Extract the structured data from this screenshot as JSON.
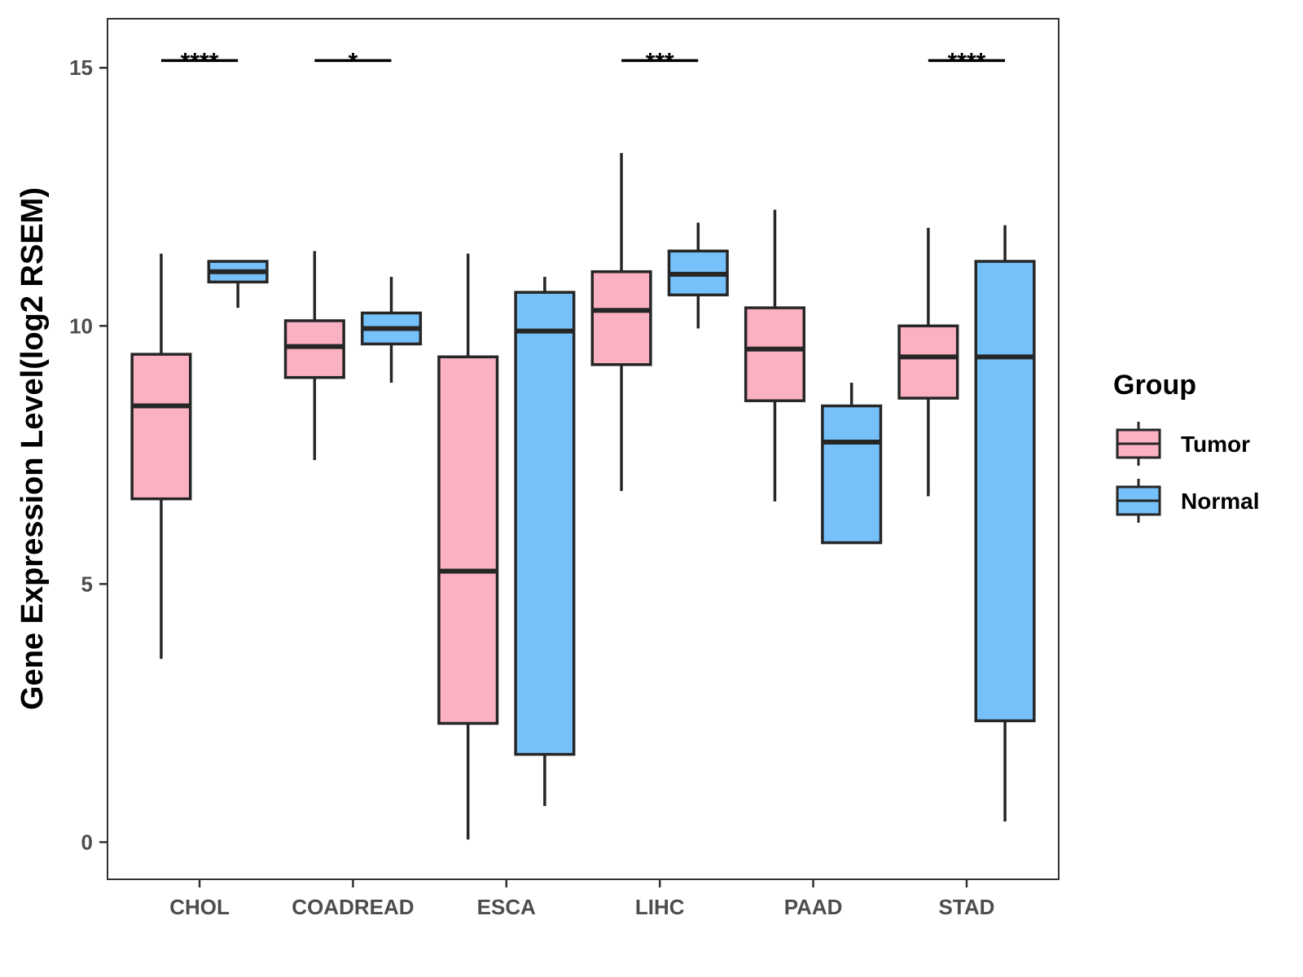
{
  "chart_data": {
    "type": "box",
    "title": "",
    "xlabel": "",
    "ylabel": "Gene Expression Level(log2 RSEM)",
    "ylim": [
      -0.72,
      15.95
    ],
    "yticks": [
      0,
      5,
      10,
      15
    ],
    "grid": false,
    "legend_position": "right",
    "legend_title": "Group",
    "categories": [
      "CHOL",
      "COADREAD",
      "ESCA",
      "LIHC",
      "PAAD",
      "STAD"
    ],
    "series": [
      {
        "name": "Tumor",
        "color": "#fbb1c1",
        "boxes": [
          {
            "min": 3.55,
            "q1": 6.65,
            "median": 8.45,
            "q3": 9.45,
            "max": 11.4
          },
          {
            "min": 7.4,
            "q1": 9.0,
            "median": 9.6,
            "q3": 10.1,
            "max": 11.45
          },
          {
            "min": 0.05,
            "q1": 2.3,
            "median": 5.25,
            "q3": 9.4,
            "max": 11.4
          },
          {
            "min": 6.8,
            "q1": 9.25,
            "median": 10.3,
            "q3": 11.05,
            "max": 13.35
          },
          {
            "min": 6.6,
            "q1": 8.55,
            "median": 9.55,
            "q3": 10.35,
            "max": 12.25
          },
          {
            "min": 6.7,
            "q1": 8.6,
            "median": 9.4,
            "q3": 10.0,
            "max": 11.9
          }
        ]
      },
      {
        "name": "Normal",
        "color": "#76c1fa",
        "boxes": [
          {
            "min": 10.35,
            "q1": 10.85,
            "median": 11.05,
            "q3": 11.25,
            "max": 11.25
          },
          {
            "min": 8.9,
            "q1": 9.65,
            "median": 9.95,
            "q3": 10.25,
            "max": 10.95
          },
          {
            "min": 0.7,
            "q1": 1.7,
            "median": 9.9,
            "q3": 10.65,
            "max": 10.95
          },
          {
            "min": 9.95,
            "q1": 10.6,
            "median": 11.0,
            "q3": 11.45,
            "max": 12.0
          },
          {
            "min": 5.8,
            "q1": 5.8,
            "median": 7.75,
            "q3": 8.45,
            "max": 8.9
          },
          {
            "min": 0.4,
            "q1": 2.35,
            "median": 9.4,
            "q3": 11.25,
            "max": 11.95
          }
        ]
      }
    ],
    "significance": [
      {
        "category": "CHOL",
        "label": "****"
      },
      {
        "category": "COADREAD",
        "label": "*"
      },
      {
        "category": "LIHC",
        "label": "***"
      },
      {
        "category": "STAD",
        "label": "****"
      }
    ]
  }
}
